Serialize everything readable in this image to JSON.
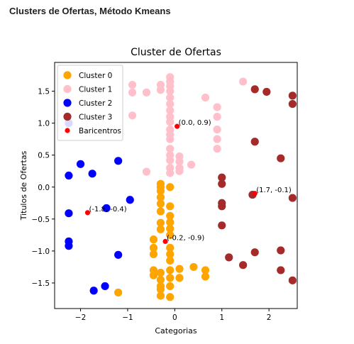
{
  "page": {
    "heading": "Clusters de Ofertas, Método Kmeans"
  },
  "chart_data": {
    "type": "scatter",
    "title": "Cluster de Ofertas",
    "xlabel": "Categorias",
    "ylabel": "Titulos de Ofertas",
    "xlim": [
      -2.55,
      2.6
    ],
    "ylim": [
      -1.9,
      1.95
    ],
    "xticks": [
      -2,
      -1,
      0,
      1,
      2
    ],
    "yticks": [
      1.5,
      1.0,
      0.5,
      0.0,
      -0.5,
      -1.0,
      -1.5
    ],
    "xtick_labels": [
      "−2",
      "−1",
      "0",
      "1",
      "2"
    ],
    "ytick_labels": [
      "1.5",
      "1.0",
      "0.5",
      "0.0",
      "−0.5",
      "−1.0",
      "−1.5"
    ],
    "legend_position": "top-left",
    "series": [
      {
        "name": "Cluster 0",
        "color": "#ffa500",
        "points": [
          [
            -0.3,
            -0.06
          ],
          [
            -0.3,
            0.0
          ],
          [
            -0.3,
            0.05
          ],
          [
            -0.3,
            -0.16
          ],
          [
            -0.3,
            -0.26
          ],
          [
            -0.3,
            -0.38
          ],
          [
            -0.3,
            -0.56
          ],
          [
            -0.3,
            -0.66
          ],
          [
            -0.45,
            -0.82
          ],
          [
            -0.45,
            -0.95
          ],
          [
            -0.45,
            -1.05
          ],
          [
            -0.45,
            -1.3
          ],
          [
            -0.45,
            -1.38
          ],
          [
            -0.3,
            -1.45
          ],
          [
            -0.3,
            -1.55
          ],
          [
            -0.3,
            -1.6
          ],
          [
            -0.3,
            -1.7
          ],
          [
            -0.3,
            -1.34
          ],
          [
            -0.1,
            0.0
          ],
          [
            -0.1,
            -0.3
          ],
          [
            -0.1,
            -0.45
          ],
          [
            -0.1,
            -0.55
          ],
          [
            -0.1,
            -0.65
          ],
          [
            -0.1,
            -0.75
          ],
          [
            -0.1,
            -0.95
          ],
          [
            -0.1,
            -1.05
          ],
          [
            -0.1,
            -1.15
          ],
          [
            -0.1,
            -1.3
          ],
          [
            -0.1,
            -1.42
          ],
          [
            -0.1,
            -1.55
          ],
          [
            -0.1,
            -1.72
          ],
          [
            0.1,
            -1.28
          ],
          [
            0.1,
            -1.42
          ],
          [
            0.4,
            -1.25
          ],
          [
            0.65,
            -1.3
          ],
          [
            0.65,
            -1.4
          ],
          [
            -1.2,
            -1.65
          ]
        ]
      },
      {
        "name": "Cluster 1",
        "color": "#ffc0cb",
        "points": [
          [
            -0.1,
            1.72
          ],
          [
            -0.1,
            1.65
          ],
          [
            -0.1,
            1.58
          ],
          [
            -0.1,
            1.5
          ],
          [
            -0.1,
            1.4
          ],
          [
            -0.1,
            1.3
          ],
          [
            -0.1,
            1.2
          ],
          [
            -0.1,
            1.1
          ],
          [
            -0.1,
            1.02
          ],
          [
            -0.1,
            0.9
          ],
          [
            -0.1,
            0.82
          ],
          [
            -0.1,
            0.75
          ],
          [
            -0.1,
            0.6
          ],
          [
            -0.1,
            0.5
          ],
          [
            -0.1,
            0.42
          ],
          [
            -0.1,
            0.3
          ],
          [
            -0.1,
            0.22
          ],
          [
            0.1,
            0.48
          ],
          [
            0.1,
            0.4
          ],
          [
            0.1,
            0.3
          ],
          [
            0.1,
            0.25
          ],
          [
            0.35,
            0.35
          ],
          [
            0.65,
            1.4
          ],
          [
            0.9,
            1.25
          ],
          [
            0.9,
            1.1
          ],
          [
            0.9,
            0.9
          ],
          [
            0.9,
            0.75
          ],
          [
            0.9,
            0.6
          ],
          [
            -0.3,
            1.6
          ],
          [
            -0.3,
            1.52
          ],
          [
            -0.6,
            1.48
          ],
          [
            -0.9,
            1.6
          ],
          [
            -0.9,
            1.48
          ],
          [
            -0.9,
            1.12
          ],
          [
            -0.6,
            0.24
          ],
          [
            1.45,
            1.65
          ]
        ]
      },
      {
        "name": "Cluster 2",
        "color": "#0000ff",
        "points": [
          [
            -2.25,
            1.0
          ],
          [
            -2.25,
            0.18
          ],
          [
            -2.0,
            0.36
          ],
          [
            -1.75,
            0.21
          ],
          [
            -1.2,
            0.41
          ],
          [
            -2.25,
            -0.41
          ],
          [
            -1.45,
            -0.33
          ],
          [
            -0.95,
            -0.2
          ],
          [
            -2.25,
            -0.85
          ],
          [
            -2.25,
            -0.92
          ],
          [
            -1.2,
            -1.06
          ],
          [
            -1.72,
            -1.62
          ],
          [
            -1.48,
            -1.55
          ]
        ]
      },
      {
        "name": "Cluster 3",
        "color": "#a52a2a",
        "points": [
          [
            1.7,
            1.53
          ],
          [
            1.95,
            1.49
          ],
          [
            2.5,
            1.43
          ],
          [
            2.5,
            1.3
          ],
          [
            1.7,
            0.71
          ],
          [
            2.25,
            0.45
          ],
          [
            1.0,
            0.15
          ],
          [
            1.0,
            0.05
          ],
          [
            1.0,
            -0.25
          ],
          [
            1.0,
            -0.3
          ],
          [
            1.0,
            -0.6
          ],
          [
            1.65,
            -0.12
          ],
          [
            2.5,
            -0.17
          ],
          [
            1.15,
            -1.1
          ],
          [
            1.45,
            -1.22
          ],
          [
            1.7,
            -1.02
          ],
          [
            2.25,
            -0.99
          ],
          [
            2.25,
            -1.3
          ],
          [
            2.5,
            -1.46
          ]
        ]
      },
      {
        "name": "Baricentros",
        "color": "#ff0000",
        "small": true,
        "points": [
          [
            0.05,
            0.95
          ],
          [
            -1.85,
            -0.4
          ],
          [
            -0.2,
            -0.85
          ],
          [
            1.7,
            -0.1
          ]
        ]
      }
    ],
    "annotations": [
      {
        "text": "(0.0, 0.9)",
        "x": 0.05,
        "y": 0.95
      },
      {
        "text": "(-1.8, -0.4)",
        "x": -1.85,
        "y": -0.4
      },
      {
        "text": "(-0.2, -0.9)",
        "x": -0.2,
        "y": -0.85
      },
      {
        "text": "(1.7, -0.1)",
        "x": 1.7,
        "y": -0.1
      }
    ]
  }
}
